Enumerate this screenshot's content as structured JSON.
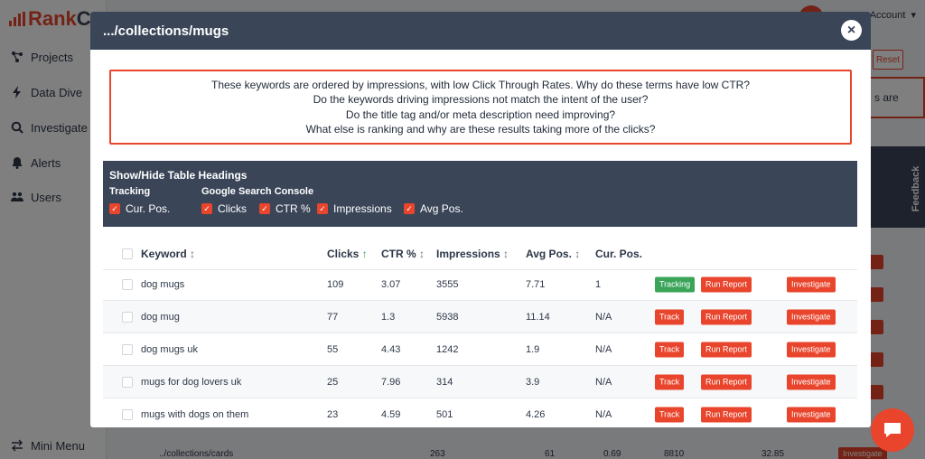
{
  "app": {
    "logo_text": "Rank",
    "logo_suffix": "Co",
    "account_label": "Account",
    "nav": [
      {
        "label": "Projects",
        "icon": "projects-icon"
      },
      {
        "label": "Data Dive",
        "icon": "bolt-icon"
      },
      {
        "label": "Investigate",
        "icon": "search-icon"
      },
      {
        "label": "Alerts",
        "icon": "bell-icon"
      },
      {
        "label": "Users",
        "icon": "users-icon"
      }
    ],
    "mini_menu_label": "Mini Menu",
    "reset_label": "Reset",
    "partial_text": "s are",
    "feedback_label": "Feedback",
    "bg_row": {
      "url": "../collections/cards",
      "clicks": "263",
      "ctr": "61",
      "c2": "0.69",
      "impressions": "8810",
      "avg": "32.85",
      "investigate": "Investigate"
    }
  },
  "modal": {
    "title": ".../collections/mugs",
    "close_icon": "close-icon",
    "notice_lines": [
      "These keywords are ordered by impressions, with low Click Through Rates. Why do these terms have low CTR?",
      "Do the keywords driving impressions not match the intent of the user?",
      "Do the title tag and/or meta description need improving?",
      "What else is ranking and why are these results taking more of the clicks?"
    ],
    "toggles": {
      "title": "Show/Hide Table Headings",
      "tracking_label": "Tracking",
      "gsc_label": "Google Search Console",
      "tracking_items": [
        "Cur. Pos."
      ],
      "gsc_items": [
        "Clicks",
        "CTR %",
        "Impressions",
        "Avg Pos."
      ]
    },
    "table": {
      "headers": {
        "keyword": "Keyword",
        "clicks": "Clicks",
        "ctr": "CTR %",
        "impressions": "Impressions",
        "avg_pos": "Avg Pos.",
        "cur_pos": "Cur. Pos."
      },
      "sort_symbols": {
        "keyword": "↕",
        "clicks": "↑",
        "ctr": "↕",
        "impressions": "↕",
        "avg_pos": "↕"
      },
      "rows": [
        {
          "keyword": "dog mugs",
          "clicks": "109",
          "ctr": "3.07",
          "impressions": "3555",
          "avg_pos": "7.71",
          "cur_pos": "1",
          "track": "Tracking",
          "run": "Run Report",
          "investigate": "Investigate"
        },
        {
          "keyword": "dog mug",
          "clicks": "77",
          "ctr": "1.3",
          "impressions": "5938",
          "avg_pos": "11.14",
          "cur_pos": "N/A",
          "track": "Track",
          "run": "Run Report",
          "investigate": "Investigate"
        },
        {
          "keyword": "dog mugs uk",
          "clicks": "55",
          "ctr": "4.43",
          "impressions": "1242",
          "avg_pos": "1.9",
          "cur_pos": "N/A",
          "track": "Track",
          "run": "Run Report",
          "investigate": "Investigate"
        },
        {
          "keyword": "mugs for dog lovers uk",
          "clicks": "25",
          "ctr": "7.96",
          "impressions": "314",
          "avg_pos": "3.9",
          "cur_pos": "N/A",
          "track": "Track",
          "run": "Run Report",
          "investigate": "Investigate"
        },
        {
          "keyword": "mugs with dogs on them",
          "clicks": "23",
          "ctr": "4.59",
          "impressions": "501",
          "avg_pos": "4.26",
          "cur_pos": "N/A",
          "track": "Track",
          "run": "Run Report",
          "investigate": "Investigate"
        }
      ]
    }
  },
  "colors": {
    "brand_red": "#e8452c",
    "header_dark": "#3a4558",
    "tracking_green": "#3aa459"
  }
}
